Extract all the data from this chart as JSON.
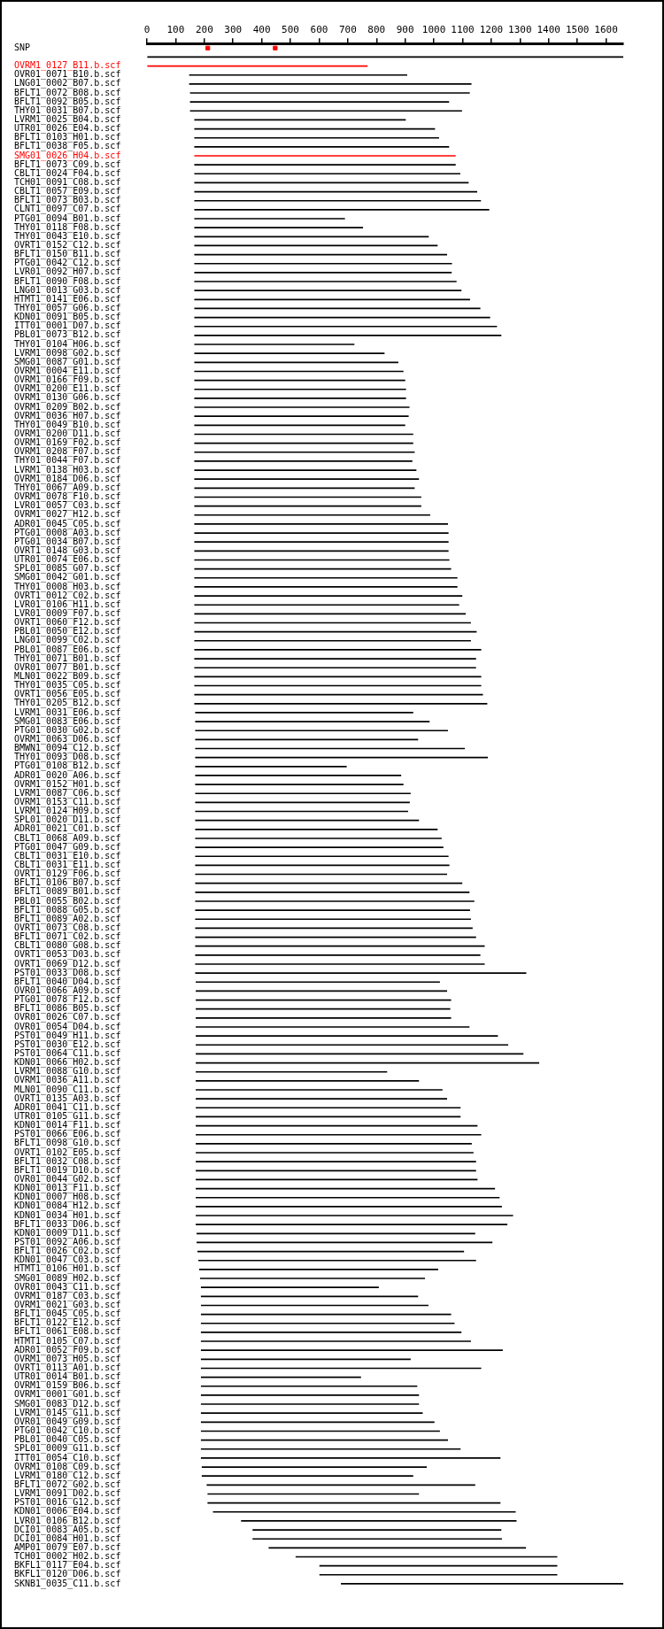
{
  "chart_data": {
    "type": "bar",
    "orientation": "horizontal",
    "xlim": [
      0,
      1660
    ],
    "xticks": [
      0,
      100,
      200,
      300,
      400,
      500,
      600,
      700,
      800,
      900,
      1000,
      1100,
      1200,
      1300,
      1400,
      1500,
      1600
    ],
    "grid": false,
    "legend": false,
    "categories": [
      "SNP",
      null,
      "OVRM1_0127_B11.b.scf",
      "OVR01_0071_B10.b.scf",
      "LNG01_0002_B07.b.scf",
      "BFLT1_0072_B08.b.scf",
      "BFLT1_0092_B05.b.scf",
      "THY01_0031_B07.b.scf",
      "LVRM1_0025_B04.b.scf",
      "UTR01_0026_E04.b.scf",
      "BFLT1_0103_H01.b.scf",
      "BFLT1_0038_F05.b.scf",
      "SMG01_0026_H04.b.scf",
      "BFLT1_0073_C09.b.scf",
      "CBLT1_0024_F04.b.scf",
      "TCH01_0091_C08.b.scf",
      "CBLT1_0057_E09.b.scf",
      "BFLT1_0073_B03.b.scf",
      "CLNT1_0097_C07.b.scf",
      "PTG01_0094_B01.b.scf",
      "THY01_0118_F08.b.scf",
      "THY01_0043_E10.b.scf",
      "OVRT1_0152_C12.b.scf",
      "BFLT1_0150_B11.b.scf",
      "PTG01_0042_C12.b.scf",
      "LVR01_0092_H07.b.scf",
      "BFLT1_0090_F08.b.scf",
      "LNG01_0013_G03.b.scf",
      "HTMT1_0141_E06.b.scf",
      "THY01_0057_G06.b.scf",
      "KDN01_0091_B05.b.scf",
      "ITT01_0001_D07.b.scf",
      "PBL01_0073_B12.b.scf",
      "THY01_0104_H06.b.scf",
      "LVRM1_0098_G02.b.scf",
      "SMG01_0087_G01.b.scf",
      "OVRM1_0004_E11.b.scf",
      "OVRM1_0166_F09.b.scf",
      "OVRM1_0200_E11.b.scf",
      "OVRM1_0130_G06.b.scf",
      "OVRM1_0209_B02.b.scf",
      "OVRM1_0036_H07.b.scf",
      "THY01_0049_B10.b.scf",
      "OVRM1_0200_D11.b.scf",
      "OVRM1_0169_F02.b.scf",
      "OVRM1_0208_F07.b.scf",
      "THY01_0044_F07.b.scf",
      "LVRM1_0138_H03.b.scf",
      "OVRM1_0184_D06.b.scf",
      "THY01_0067_A09.b.scf",
      "OVRM1_0078_F10.b.scf",
      "LVR01_0057_C03.b.scf",
      "OVRM1_0027_H12.b.scf",
      "ADR01_0045_C05.b.scf",
      "PTG01_0008_A03.b.scf",
      "PTG01_0034_B07.b.scf",
      "OVRT1_0148_G03.b.scf",
      "UTR01_0074_E06.b.scf",
      "SPL01_0085_G07.b.scf",
      "SMG01_0042_G01.b.scf",
      "THY01_0008_H03.b.scf",
      "OVRT1_0012_C02.b.scf",
      "LVR01_0106_H11.b.scf",
      "LVR01_0009_F07.b.scf",
      "OVRT1_0060_F12.b.scf",
      "PBL01_0050_E12.b.scf",
      "LNG01_0099_C02.b.scf",
      "PBL01_0087_E06.b.scf",
      "THY01_0071_B01.b.scf",
      "OVR01_0077_B01.b.scf",
      "MLN01_0022_B09.b.scf",
      "THY01_0035_C05.b.scf",
      "OVRT1_0056_E05.b.scf",
      "THY01_0205_B12.b.scf",
      "LVRM1_0031_E06.b.scf",
      "SMG01_0083_E06.b.scf",
      "PTG01_0030_G02.b.scf",
      "OVRM1_0063_D06.b.scf",
      "BMWN1_0094_C12.b.scf",
      "THY01_0093_D08.b.scf",
      "PTG01_0108_B12.b.scf",
      "ADR01_0020_A06.b.scf",
      "OVRM1_0152_H01.b.scf",
      "LVRM1_0087_C06.b.scf",
      "OVRM1_0153_C11.b.scf",
      "LVRM1_0124_H09.b.scf",
      "SPL01_0020_D11.b.scf",
      "ADR01_0021_C01.b.scf",
      "CBLT1_0068_A09.b.scf",
      "PTG01_0047_G09.b.scf",
      "CBLT1_0031_E10.b.scf",
      "CBLT1_0031_E11.b.scf",
      "OVRT1_0129_F06.b.scf",
      "BFLT1_0106_B07.b.scf",
      "BFLT1_0089_B01.b.scf",
      "PBL01_0055_B02.b.scf",
      "BFLT1_0088_G05.b.scf",
      "BFLT1_0089_A02.b.scf",
      "OVRT1_0073_C08.b.scf",
      "BFLT1_0071_C02.b.scf",
      "CBLT1_0080_G08.b.scf",
      "OVRT1_0053_D03.b.scf",
      "OVRT1_0069_D12.b.scf",
      "PST01_0033_D08.b.scf",
      "BFLT1_0040_D04.b.scf",
      "OVR01_0066_A09.b.scf",
      "PTG01_0078_F12.b.scf",
      "BFLT1_0086_B05.b.scf",
      "OVR01_0026_C07.b.scf",
      "OVR01_0054_D04.b.scf",
      "PST01_0049_H11.b.scf",
      "PST01_0030_E12.b.scf",
      "PST01_0064_C11.b.scf",
      "KDN01_0066_H02.b.scf",
      "LVRM1_0088_G10.b.scf",
      "OVRM1_0036_A11.b.scf",
      "MLN01_0090_C11.b.scf",
      "OVRT1_0135_A03.b.scf",
      "ADR01_0041_C11.b.scf",
      "UTR01_0105_G11.b.scf",
      "KDN01_0014_F11.b.scf",
      "PST01_0066_E06.b.scf",
      "BFLT1_0098_G10.b.scf",
      "OVRT1_0102_E05.b.scf",
      "BFLT1_0032_C08.b.scf",
      "BFLT1_0019_D10.b.scf",
      "OVR01_0044_G02.b.scf",
      "KDN01_0013_F11.b.scf",
      "KDN01_0007_H08.b.scf",
      "KDN01_0084_H12.b.scf",
      "KDN01_0034_H01.b.scf",
      "BFLT1_0033_D06.b.scf",
      "KDN01_0009_D11.b.scf",
      "PST01_0092_A06.b.scf",
      "BFLT1_0026_C02.b.scf",
      "KDN01_0047_C03.b.scf",
      "HTMT1_0106_H01.b.scf",
      "SMG01_0089_H02.b.scf",
      "OVR01_0043_C11.b.scf",
      "OVRM1_0187_C03.b.scf",
      "OVRM1_0021_G03.b.scf",
      "BFLT1_0045_C05.b.scf",
      "BFLT1_0122_E12.b.scf",
      "BFLT1_0061_E08.b.scf",
      "HTMT1_0105_C07.b.scf",
      "ADR01_0052_F09.b.scf",
      "OVRM1_0073_H05.b.scf",
      "OVRT1_0113_A01.b.scf",
      "UTR01_0014_B01.b.scf",
      "OVRM1_0159_B06.b.scf",
      "OVRM1_0001_G01.b.scf",
      "SMG01_0083_D12.b.scf",
      "LVRM1_0145_G11.b.scf",
      "OVR01_0049_G09.b.scf",
      "PTG01_0042_C10.b.scf",
      "PBL01_0040_C05.b.scf",
      "SPL01_0009_G11.b.scf",
      "ITT01_0054_C10.b.scf",
      "OVRM1_0108_C09.b.scf",
      "LVRM1_0180_C12.b.scf",
      "BFLT1_0072_G02.b.scf",
      "LVRM1_0091_D02.b.scf",
      "PST01_0016_G12.b.scf",
      "KDN01_0006_E04.b.scf",
      "LVR01_0106_B12.b.scf",
      "DCI01_0083_A05.b.scf",
      "DCI01_0084_H01.b.scf",
      "AMP01_0079_E07.b.scf",
      "TCH01_0002_H02.b.scf",
      "BKFL1_0117_E04.b.scf",
      "BKFL1_0120_D06.b.scf",
      "SKNB1_0035_C11.b.scf"
    ],
    "series": [
      {
        "base": [
          null,
          0,
          0,
          148,
          148,
          151,
          151,
          151,
          166,
          166,
          166,
          166,
          166,
          166,
          166,
          166,
          166,
          166,
          166,
          166,
          166,
          166,
          166,
          166,
          166,
          166,
          166,
          166,
          166,
          166,
          166,
          166,
          166,
          166,
          166,
          166,
          166,
          166,
          166,
          166,
          166,
          166,
          166,
          166,
          166,
          166,
          166,
          166,
          166,
          166,
          166,
          166,
          166,
          166,
          166,
          166,
          166,
          166,
          166,
          166,
          166,
          166,
          166,
          166,
          166,
          166,
          166,
          166,
          166,
          166,
          166,
          166,
          166,
          166,
          169,
          169,
          169,
          169,
          169,
          169,
          169,
          169,
          169,
          169,
          169,
          169,
          169,
          169,
          169,
          169,
          169,
          169,
          169,
          169,
          169,
          169,
          169,
          169,
          169,
          169,
          169,
          169,
          169,
          169,
          171,
          171,
          171,
          171,
          171,
          171,
          171,
          171,
          171,
          171,
          171,
          171,
          171,
          171,
          171,
          171,
          171,
          171,
          171,
          171,
          171,
          171,
          171,
          171,
          171,
          171,
          171,
          171,
          174,
          174,
          177,
          180,
          183,
          186,
          189,
          189,
          189,
          189,
          189,
          189,
          189,
          189,
          189,
          189,
          189,
          189,
          189,
          189,
          189,
          189,
          189,
          189,
          189,
          189,
          192,
          192,
          209,
          212,
          212,
          231,
          329,
          369,
          369,
          425,
          519,
          602,
          602,
          677
        ],
        "values": [
          null,
          1660,
          768,
          758,
          982,
          973,
          901,
          946,
          735,
          837,
          851,
          886,
          909,
          909,
          925,
          954,
          984,
          997,
          1026,
          523,
          586,
          815,
          846,
          879,
          896,
          895,
          912,
          929,
          959,
          995,
          1029,
          1053,
          1068,
          556,
          661,
          709,
          727,
          733,
          736,
          736,
          748,
          745,
          733,
          761,
          761,
          766,
          758,
          772,
          781,
          766,
          789,
          789,
          820,
          882,
          884,
          884,
          884,
          887,
          893,
          915,
          915,
          932,
          921,
          944,
          962,
          982,
          962,
          998,
          980,
          980,
          998,
          998,
          1004,
          1019,
          758,
          815,
          879,
          775,
          938,
          1018,
          526,
          716,
          724,
          749,
          746,
          740,
          778,
          843,
          857,
          863,
          881,
          884,
          876,
          929,
          954,
          971,
          956,
          959,
          965,
          977,
          1007,
          992,
          1007,
          1152,
          849,
          874,
          888,
          885,
          888,
          952,
          1051,
          1087,
          1140,
          1195,
          665,
          776,
          858,
          874,
          921,
          921,
          980,
          993,
          960,
          966,
          975,
          975,
          980,
          1041,
          1057,
          1065,
          1104,
          1084,
          969,
          1029,
          927,
          966,
          831,
          782,
          618,
          755,
          791,
          870,
          882,
          906,
          939,
          1050,
          729,
          975,
          556,
          752,
          758,
          758,
          771,
          812,
          831,
          859,
          903,
          1042,
          782,
          735,
          934,
          735,
          1019,
          1053,
          958,
          865,
          867,
          895,
          910,
          827,
          827,
          990
        ],
        "colors": [
          null,
          "#000000",
          "#ff0000",
          "#000000",
          "#000000",
          "#000000",
          "#000000",
          "#000000",
          "#000000",
          "#000000",
          "#000000",
          "#000000",
          "#ff0000",
          "#000000",
          "#000000",
          "#000000",
          "#000000",
          "#000000",
          "#000000",
          "#000000",
          "#000000",
          "#000000",
          "#000000",
          "#000000",
          "#000000",
          "#000000",
          "#000000",
          "#000000",
          "#000000",
          "#000000",
          "#000000",
          "#000000",
          "#000000",
          "#000000",
          "#000000",
          "#000000",
          "#000000",
          "#000000",
          "#000000",
          "#000000",
          "#000000",
          "#000000",
          "#000000",
          "#000000",
          "#000000",
          "#000000",
          "#000000",
          "#000000",
          "#000000",
          "#000000",
          "#000000",
          "#000000",
          "#000000",
          "#000000",
          "#000000",
          "#000000",
          "#000000",
          "#000000",
          "#000000",
          "#000000",
          "#000000",
          "#000000",
          "#000000",
          "#000000",
          "#000000",
          "#000000",
          "#000000",
          "#000000",
          "#000000",
          "#000000",
          "#000000",
          "#000000",
          "#000000",
          "#000000",
          "#000000",
          "#000000",
          "#000000",
          "#000000",
          "#000000",
          "#000000",
          "#000000",
          "#000000",
          "#000000",
          "#000000",
          "#000000",
          "#000000",
          "#000000",
          "#000000",
          "#000000",
          "#000000",
          "#000000",
          "#000000",
          "#000000",
          "#000000",
          "#000000",
          "#000000",
          "#000000",
          "#000000",
          "#000000",
          "#000000",
          "#000000",
          "#000000",
          "#000000",
          "#000000",
          "#000000",
          "#000000",
          "#000000",
          "#000000",
          "#000000",
          "#000000",
          "#000000",
          "#000000",
          "#000000",
          "#000000",
          "#000000",
          "#000000",
          "#000000",
          "#000000",
          "#000000",
          "#000000",
          "#000000",
          "#000000",
          "#000000",
          "#000000",
          "#000000",
          "#000000",
          "#000000",
          "#000000",
          "#000000",
          "#000000",
          "#000000",
          "#000000",
          "#000000",
          "#000000",
          "#000000",
          "#000000",
          "#000000",
          "#000000",
          "#000000",
          "#000000",
          "#000000",
          "#000000",
          "#000000",
          "#000000",
          "#000000",
          "#000000",
          "#000000",
          "#000000",
          "#000000",
          "#000000",
          "#000000",
          "#000000",
          "#000000",
          "#000000",
          "#000000",
          "#000000",
          "#000000",
          "#000000",
          "#000000",
          "#000000",
          "#000000",
          "#000000",
          "#000000",
          "#000000",
          "#000000",
          "#000000",
          "#000000",
          "#000000",
          "#000000",
          "#000000",
          "#000000",
          "#000000"
        ]
      },
      {
        "type": "scatter",
        "x": [
          "SNP",
          "SNP"
        ],
        "values": [
          212,
          447
        ],
        "color": "#ff0000",
        "marker": "square"
      }
    ]
  }
}
